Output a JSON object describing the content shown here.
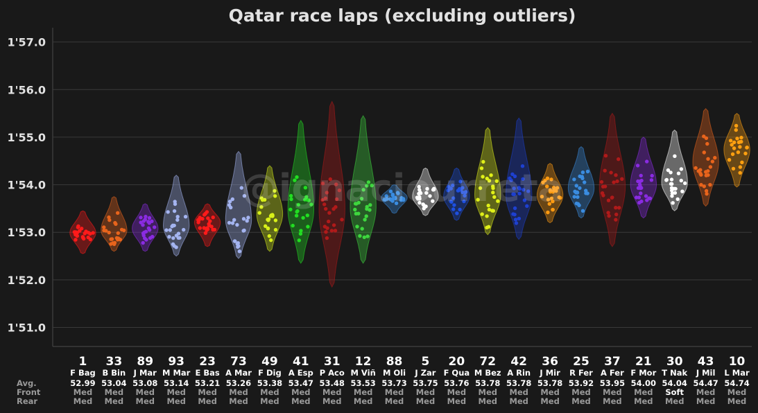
{
  "watermark": "@ignaciourreta",
  "row_labels": {
    "avg": "Avg.",
    "front": "Front",
    "rear": "Rear"
  },
  "chart_data": {
    "type": "violin",
    "title": "Qatar race laps (excluding outliers)",
    "y_ticks": [
      "1'51.0",
      "1'52.0",
      "1'53.0",
      "1'54.0",
      "1'55.0",
      "1'56.0",
      "1'57.0"
    ],
    "y_tick_values": [
      111,
      112,
      113,
      114,
      115,
      116,
      117
    ],
    "ylim": [
      110.6,
      117.3
    ],
    "grid": true,
    "drivers": [
      {
        "number": "1",
        "abbr": "F Bag",
        "avg": "52.99",
        "front": "Med",
        "rear": "Med",
        "color": "#ff1a1a",
        "min": 112.55,
        "max": 113.45,
        "mean": 112.99
      },
      {
        "number": "33",
        "abbr": "B Bin",
        "avg": "53.04",
        "front": "Med",
        "rear": "Med",
        "color": "#e8641c",
        "min": 112.6,
        "max": 113.75,
        "mean": 113.04
      },
      {
        "number": "89",
        "abbr": "J Mar",
        "avg": "53.08",
        "front": "Med",
        "rear": "Med",
        "color": "#8a2be2",
        "min": 112.6,
        "max": 113.6,
        "mean": 113.08
      },
      {
        "number": "93",
        "abbr": "M Mar",
        "avg": "53.14",
        "front": "Med",
        "rear": "Med",
        "color": "#a4b4f0",
        "min": 112.5,
        "max": 114.2,
        "mean": 113.14
      },
      {
        "number": "23",
        "abbr": "E Bas",
        "avg": "53.21",
        "front": "Med",
        "rear": "Med",
        "color": "#ff1a1a",
        "min": 112.7,
        "max": 113.6,
        "mean": 113.21
      },
      {
        "number": "73",
        "abbr": "A Mar",
        "avg": "53.26",
        "front": "Med",
        "rear": "Med",
        "color": "#a4b4f0",
        "min": 112.45,
        "max": 114.7,
        "mean": 113.26
      },
      {
        "number": "49",
        "abbr": "F Dig",
        "avg": "53.38",
        "front": "Med",
        "rear": "Med",
        "color": "#d8f019",
        "min": 112.6,
        "max": 114.4,
        "mean": 113.38
      },
      {
        "number": "41",
        "abbr": "A Esp",
        "avg": "53.47",
        "front": "Med",
        "rear": "Med",
        "color": "#22dd22",
        "min": 112.35,
        "max": 115.35,
        "mean": 113.47
      },
      {
        "number": "31",
        "abbr": "P Aco",
        "avg": "53.48",
        "front": "Med",
        "rear": "Med",
        "color": "#b01a1a",
        "min": 111.85,
        "max": 115.75,
        "mean": 113.48
      },
      {
        "number": "12",
        "abbr": "M Viñ",
        "avg": "53.53",
        "front": "Med",
        "rear": "Med",
        "color": "#3ed63e",
        "min": 112.35,
        "max": 115.45,
        "mean": 113.53
      },
      {
        "number": "88",
        "abbr": "M Oli",
        "avg": "53.73",
        "front": "Med",
        "rear": "Med",
        "color": "#3a8ce0",
        "min": 113.4,
        "max": 114.0,
        "mean": 113.73
      },
      {
        "number": "5",
        "abbr": "J Zar",
        "avg": "53.75",
        "front": "Med",
        "rear": "Med",
        "color": "#ffffff",
        "min": 113.35,
        "max": 114.35,
        "mean": 113.75
      },
      {
        "number": "20",
        "abbr": "F Qua",
        "avg": "53.76",
        "front": "Med",
        "rear": "Med",
        "color": "#1e4fe0",
        "min": 113.25,
        "max": 114.35,
        "mean": 113.76
      },
      {
        "number": "72",
        "abbr": "M Bez",
        "avg": "53.78",
        "front": "Med",
        "rear": "Med",
        "color": "#e0f019",
        "min": 112.95,
        "max": 115.2,
        "mean": 113.78
      },
      {
        "number": "42",
        "abbr": "A Rin",
        "avg": "53.78",
        "front": "Med",
        "rear": "Med",
        "color": "#1e40d0",
        "min": 112.85,
        "max": 115.4,
        "mean": 113.78
      },
      {
        "number": "36",
        "abbr": "J Mir",
        "avg": "53.78",
        "front": "Med",
        "rear": "Med",
        "color": "#ff9a10",
        "min": 113.2,
        "max": 114.45,
        "mean": 113.78
      },
      {
        "number": "25",
        "abbr": "R Fer",
        "avg": "53.92",
        "front": "Med",
        "rear": "Med",
        "color": "#3a8ce0",
        "min": 113.3,
        "max": 114.8,
        "mean": 113.92
      },
      {
        "number": "37",
        "abbr": "A Fer",
        "avg": "53.95",
        "front": "Med",
        "rear": "Med",
        "color": "#b01a1a",
        "min": 112.7,
        "max": 115.5,
        "mean": 113.95
      },
      {
        "number": "21",
        "abbr": "F Mor",
        "avg": "54.00",
        "front": "Med",
        "rear": "Med",
        "color": "#8a2be2",
        "min": 113.3,
        "max": 115.0,
        "mean": 114.0
      },
      {
        "number": "30",
        "abbr": "T Nak",
        "avg": "54.04",
        "front": "Soft",
        "rear": "Med",
        "color": "#ffffff",
        "min": 113.45,
        "max": 115.15,
        "mean": 114.04
      },
      {
        "number": "43",
        "abbr": "J Mil",
        "avg": "54.47",
        "front": "Med",
        "rear": "Med",
        "color": "#e8641c",
        "min": 113.55,
        "max": 115.6,
        "mean": 114.47
      },
      {
        "number": "10",
        "abbr": "L Mar",
        "avg": "54.74",
        "front": "Med",
        "rear": "Med",
        "color": "#ffa010",
        "min": 113.95,
        "max": 115.5,
        "mean": 114.74
      }
    ]
  }
}
